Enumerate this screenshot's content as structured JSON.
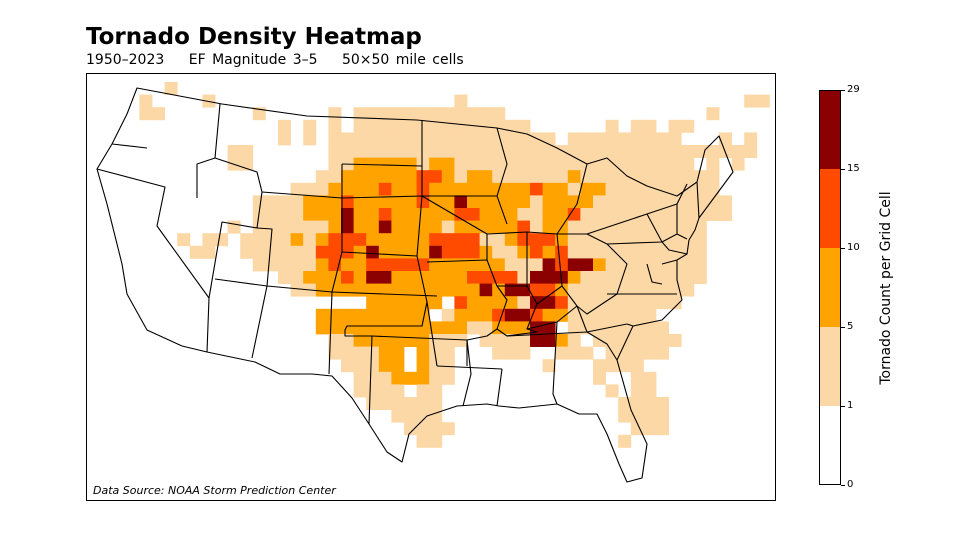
{
  "header": {
    "title": "Tornado Density Heatmap",
    "period": "1950–2023",
    "magnitude": "EF Magnitude 3–5",
    "cell_size": "50×50 mile cells"
  },
  "map": {
    "source_note": "Data Source: NOAA Storm Prediction Center",
    "cell_palette": {
      "light": "#fdd8a7",
      "medium": "#ffa300",
      "strong": "#ff4b00",
      "extreme": "#8b0000"
    }
  },
  "chart_data": {
    "type": "heatmap",
    "title": "Tornado Density Heatmap",
    "subtitle": "1950–2023    EF Magnitude 3–5    50×50 mile cells",
    "colorbar": {
      "label": "Tornado Count per Grid Cell",
      "ticks": [
        0,
        1,
        5,
        10,
        15,
        29
      ],
      "bins": [
        {
          "range": [
            0,
            1
          ],
          "color": "#ffffff"
        },
        {
          "range": [
            1,
            5
          ],
          "color": "#fdd8a7"
        },
        {
          "range": [
            5,
            10
          ],
          "color": "#ffa300"
        },
        {
          "range": [
            10,
            15
          ],
          "color": "#ff4b00"
        },
        {
          "range": [
            15,
            29
          ],
          "color": "#8b0000"
        }
      ]
    },
    "grid_rows": [
      "......1...............................................",
      "....1....1...................1......................11",
      "....11.......1.....1.111111111111................1....",
      "...............1.1.1.11111111111111......1.11.11......",
      "...............1.1.111111111111111111.111111111...1.1.",
      "...........11......1111111111111111111111111111111111.",
      "...........11......11222221221111111111111111111.1.1..",
      "..................11222222332122111111211111111111....",
      "................1112222322322222222322122111111111....",
      ".............11112223222223224222221222211111111111...",
      ".............11112224223222223322211223111111111111...",
      "...........1.111111242242222122222312211111111111.....",
      ".......1.11.1111212333222223333112333211111111111.....",
      "........11..1111113332422224333211232311111111111.....",
      ".............111112322333332222221114344211111111.....",
      "...............1122232442222223333144421111111111.....",
      "................11222222222222242443321111111111......",
      "......................222222.322221443111111111.......",
      "..................222222222.12223443221111111.........",
      "..................2222222222221122244.11111111........",
      "...................11222222111.11114421.1111111.......",
      "...................111122.211...111..111.11111........",
      "....................11122.211.......1...1111..........",
      ".....................11122211...........1..11.........",
      ".....................1111.11.............1.11.........",
      "......................111111..............1111........",
      "........................1111..............1111........",
      ".........................1111..............111........",
      "..........................11..............1..........."
    ],
    "grid_legend": {
      ".": "0",
      "1": "1–5",
      "2": "5–10",
      "3": "10–15",
      "4": "15–29"
    }
  }
}
